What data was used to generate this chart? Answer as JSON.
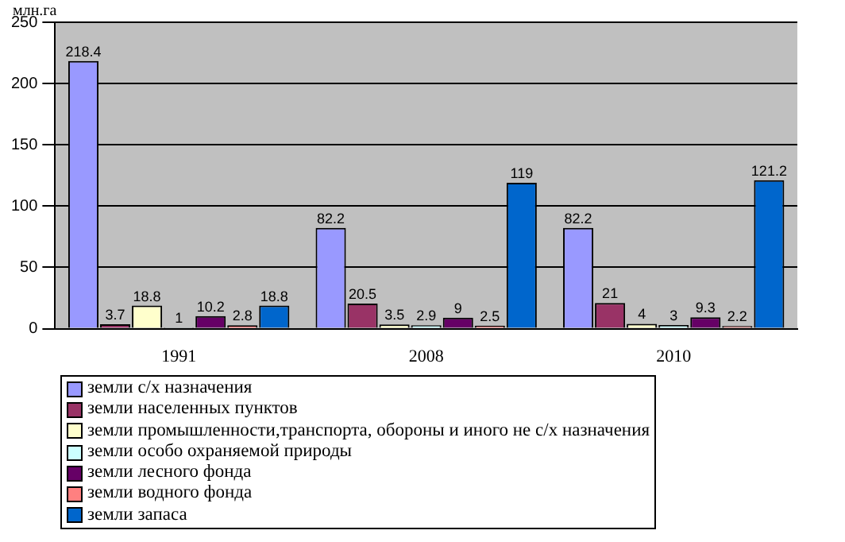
{
  "chart_data": {
    "type": "bar",
    "ylabel": "млн.га",
    "categories": [
      "1991",
      "2008",
      "2010"
    ],
    "series": [
      {
        "name": "земли с/х назначения",
        "color": "#9999ff",
        "values": [
          218.4,
          82.2,
          82.2
        ]
      },
      {
        "name": "земли населенных пунктов",
        "color": "#993366",
        "values": [
          3.7,
          20.5,
          21
        ]
      },
      {
        "name": "земли промышленности,транспорта, обороны и иного не с/х назначения",
        "color": "#ffffcc",
        "values": [
          18.8,
          3.5,
          4
        ]
      },
      {
        "name": "земли особо охраняемой природы",
        "color": "#ccffff",
        "values": [
          1,
          2.9,
          3
        ]
      },
      {
        "name": "земли лесного фонда",
        "color": "#660066",
        "values": [
          10.2,
          9,
          9.3
        ]
      },
      {
        "name": "земли водного фонда",
        "color": "#ff8080",
        "values": [
          2.8,
          2.5,
          2.2
        ]
      },
      {
        "name": "земли запаса",
        "color": "#0066cc",
        "values": [
          18.8,
          119,
          121.2
        ]
      }
    ],
    "ylim": [
      0,
      250
    ],
    "yticks": [
      0,
      50,
      100,
      150,
      200,
      250
    ],
    "grid": "y",
    "legend": "bottom",
    "data_labels": true
  }
}
